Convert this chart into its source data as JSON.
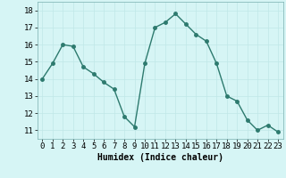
{
  "x": [
    0,
    1,
    2,
    3,
    4,
    5,
    6,
    7,
    8,
    9,
    10,
    11,
    12,
    13,
    14,
    15,
    16,
    17,
    18,
    19,
    20,
    21,
    22,
    23
  ],
  "y": [
    14.0,
    14.9,
    16.0,
    15.9,
    14.7,
    14.3,
    13.8,
    13.4,
    11.8,
    11.2,
    14.9,
    17.0,
    17.3,
    17.8,
    17.2,
    16.6,
    16.2,
    14.9,
    13.0,
    12.7,
    11.6,
    11.0,
    11.3,
    10.9
  ],
  "line_color": "#2d7a6e",
  "marker": "o",
  "markersize": 2.5,
  "linewidth": 1.0,
  "bg_color": "#d6f5f5",
  "grid_color": "#c0e8e8",
  "xlabel": "Humidex (Indice chaleur)",
  "xlim": [
    -0.5,
    23.5
  ],
  "ylim": [
    10.5,
    18.5
  ],
  "yticks": [
    11,
    12,
    13,
    14,
    15,
    16,
    17,
    18
  ],
  "xticks": [
    0,
    1,
    2,
    3,
    4,
    5,
    6,
    7,
    8,
    9,
    10,
    11,
    12,
    13,
    14,
    15,
    16,
    17,
    18,
    19,
    20,
    21,
    22,
    23
  ],
  "xlabel_fontsize": 7,
  "tick_fontsize": 6.5
}
